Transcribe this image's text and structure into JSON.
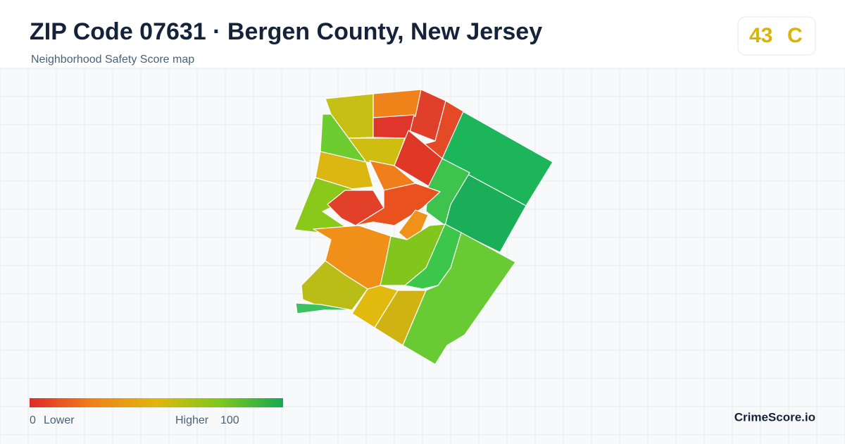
{
  "header": {
    "title": "ZIP Code 07631 · Bergen County, New Jersey",
    "subtitle": "Neighborhood Safety Score map"
  },
  "badge": {
    "score": 43,
    "grade": "C"
  },
  "legend": {
    "min": 0,
    "min_label": "Lower",
    "max_label": "Higher",
    "max": 100
  },
  "brand": "CrimeScore.io"
}
